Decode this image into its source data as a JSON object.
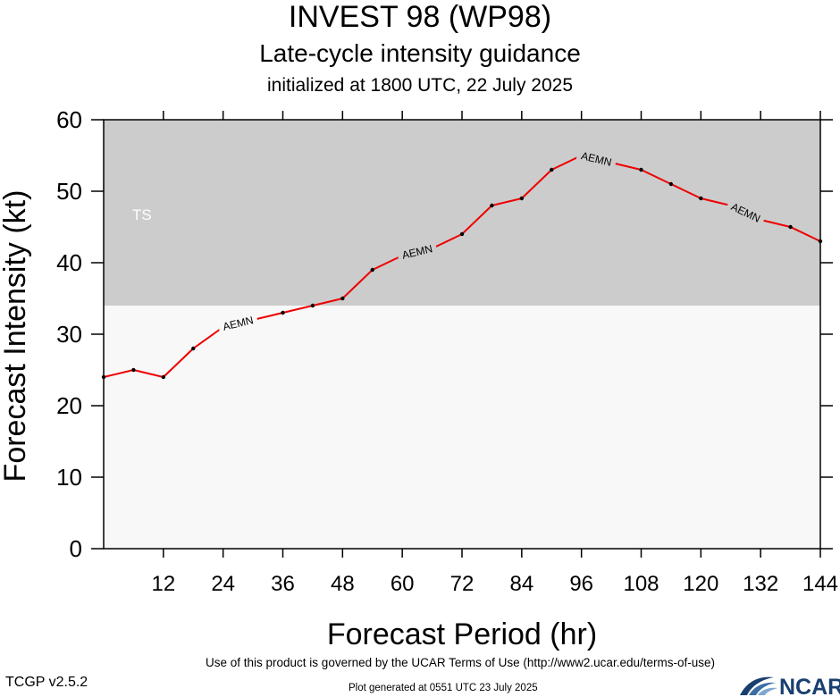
{
  "header": {
    "title": "INVEST 98 (WP98)",
    "subtitle": "Late-cycle intensity guidance",
    "init_line": "initialized at 1800 UTC, 22 July 2025"
  },
  "footer": {
    "terms": "Use of this product is governed by the UCAR Terms of Use (http://www2.ucar.edu/terms-of-use)",
    "version": "TCGP v2.5.2",
    "generated": "Plot generated at 0551 UTC   23 July 2025",
    "logo_text": "NCAR"
  },
  "colors": {
    "ts_band": "#cccccc",
    "below_band": "#f8f8f8",
    "line": "#ee0000",
    "marker": "#000000",
    "band_label": "#ffffff"
  },
  "chart_data": {
    "type": "line",
    "xlabel": "Forecast Period (hr)",
    "ylabel": "Forecast Intensity (kt)",
    "xlim": [
      0,
      144
    ],
    "ylim": [
      0,
      60
    ],
    "xticks": [
      12,
      24,
      36,
      48,
      60,
      72,
      84,
      96,
      108,
      120,
      132,
      144
    ],
    "yticks": [
      0,
      10,
      20,
      30,
      40,
      50,
      60
    ],
    "bands": [
      {
        "label": "TS",
        "from": 34,
        "to": 60
      }
    ],
    "series": [
      {
        "name": "AEMN",
        "x": [
          0,
          6,
          12,
          18,
          24,
          30,
          36,
          42,
          48,
          54,
          60,
          66,
          72,
          78,
          84,
          90,
          96,
          102,
          108,
          114,
          120,
          126,
          132,
          138,
          144
        ],
        "y": [
          24,
          25,
          24,
          28,
          31,
          32,
          33,
          34,
          35,
          39,
          41,
          42,
          44,
          48,
          49,
          53,
          55,
          54,
          53,
          51,
          49,
          48,
          46,
          45,
          43
        ]
      }
    ],
    "grid": false
  }
}
